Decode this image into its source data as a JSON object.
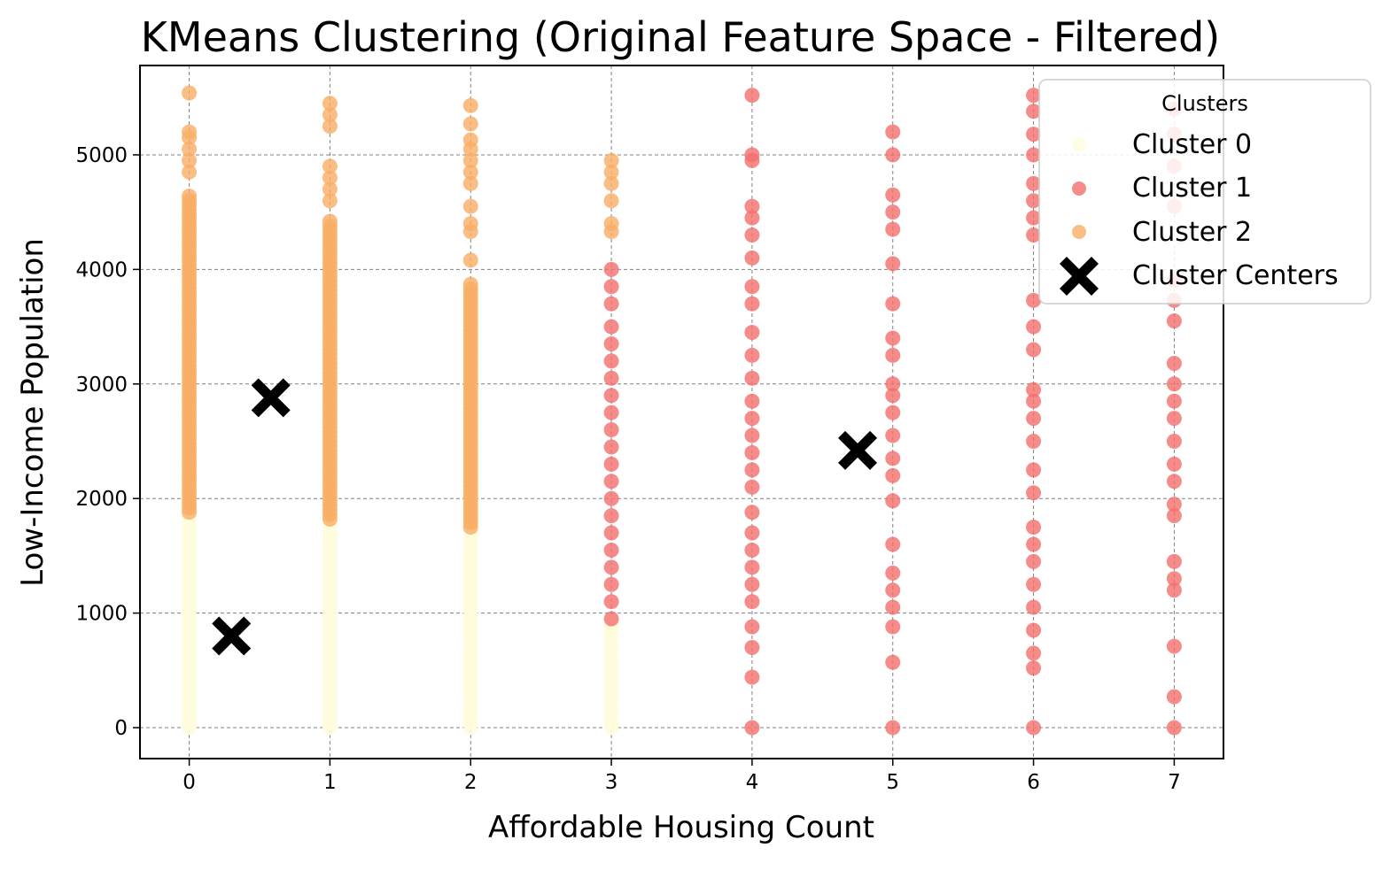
{
  "chart_data": {
    "type": "scatter",
    "title": "KMeans Clustering (Original Feature Space - Filtered)",
    "xlabel": "Affordable Housing Count",
    "ylabel": "Low-Income Population",
    "xlim": [
      -0.35,
      7.35
    ],
    "ylim": [
      -270,
      5780
    ],
    "xticks": [
      0,
      1,
      2,
      3,
      4,
      5,
      6,
      7
    ],
    "yticks": [
      0,
      1000,
      2000,
      3000,
      4000,
      5000
    ],
    "grid": true,
    "legend": {
      "title": "Clusters",
      "placement": "top-right",
      "entries": [
        "Cluster 0",
        "Cluster 1",
        "Cluster 2",
        "Cluster Centers"
      ]
    },
    "colors": {
      "Cluster 0": "#fffbdd",
      "Cluster 1": "#f46f6d",
      "Cluster 2": "#f9ae65",
      "Cluster Centers": "#000000"
    },
    "series": [
      {
        "name": "Cluster 0",
        "columns": [
          {
            "x": 0,
            "y_min": 0,
            "y_max": 1880
          },
          {
            "x": 1,
            "y_min": 0,
            "y_max": 1820
          },
          {
            "x": 2,
            "y_min": 0,
            "y_max": 1750
          },
          {
            "x": 3,
            "y_min": 0,
            "y_max": 950
          }
        ]
      },
      {
        "name": "Cluster 1",
        "points": [
          {
            "x": 3,
            "y": 950
          },
          {
            "x": 3,
            "y": 1100
          },
          {
            "x": 3,
            "y": 1250
          },
          {
            "x": 3,
            "y": 1400
          },
          {
            "x": 3,
            "y": 1550
          },
          {
            "x": 3,
            "y": 1700
          },
          {
            "x": 3,
            "y": 1850
          },
          {
            "x": 3,
            "y": 2000
          },
          {
            "x": 3,
            "y": 2150
          },
          {
            "x": 3,
            "y": 2300
          },
          {
            "x": 3,
            "y": 2450
          },
          {
            "x": 3,
            "y": 2600
          },
          {
            "x": 3,
            "y": 2750
          },
          {
            "x": 3,
            "y": 2900
          },
          {
            "x": 3,
            "y": 3050
          },
          {
            "x": 3,
            "y": 3200
          },
          {
            "x": 3,
            "y": 3350
          },
          {
            "x": 3,
            "y": 3500
          },
          {
            "x": 3,
            "y": 3700
          },
          {
            "x": 3,
            "y": 3850
          },
          {
            "x": 3,
            "y": 4000
          },
          {
            "x": 4,
            "y": 0
          },
          {
            "x": 4,
            "y": 440
          },
          {
            "x": 4,
            "y": 700
          },
          {
            "x": 4,
            "y": 880
          },
          {
            "x": 4,
            "y": 1100
          },
          {
            "x": 4,
            "y": 1250
          },
          {
            "x": 4,
            "y": 1400
          },
          {
            "x": 4,
            "y": 1550
          },
          {
            "x": 4,
            "y": 1700
          },
          {
            "x": 4,
            "y": 1880
          },
          {
            "x": 4,
            "y": 2100
          },
          {
            "x": 4,
            "y": 2250
          },
          {
            "x": 4,
            "y": 2400
          },
          {
            "x": 4,
            "y": 2550
          },
          {
            "x": 4,
            "y": 2700
          },
          {
            "x": 4,
            "y": 2850
          },
          {
            "x": 4,
            "y": 3050
          },
          {
            "x": 4,
            "y": 3250
          },
          {
            "x": 4,
            "y": 3450
          },
          {
            "x": 4,
            "y": 3700
          },
          {
            "x": 4,
            "y": 3850
          },
          {
            "x": 4,
            "y": 4100
          },
          {
            "x": 4,
            "y": 4300
          },
          {
            "x": 4,
            "y": 4450
          },
          {
            "x": 4,
            "y": 4550
          },
          {
            "x": 4,
            "y": 4950
          },
          {
            "x": 4,
            "y": 5000
          },
          {
            "x": 4,
            "y": 5520
          },
          {
            "x": 5,
            "y": 0
          },
          {
            "x": 5,
            "y": 570
          },
          {
            "x": 5,
            "y": 880
          },
          {
            "x": 5,
            "y": 1050
          },
          {
            "x": 5,
            "y": 1200
          },
          {
            "x": 5,
            "y": 1350
          },
          {
            "x": 5,
            "y": 1600
          },
          {
            "x": 5,
            "y": 1980
          },
          {
            "x": 5,
            "y": 2200
          },
          {
            "x": 5,
            "y": 2350
          },
          {
            "x": 5,
            "y": 2550
          },
          {
            "x": 5,
            "y": 2750
          },
          {
            "x": 5,
            "y": 2900
          },
          {
            "x": 5,
            "y": 3000
          },
          {
            "x": 5,
            "y": 3250
          },
          {
            "x": 5,
            "y": 3400
          },
          {
            "x": 5,
            "y": 3700
          },
          {
            "x": 5,
            "y": 4050
          },
          {
            "x": 5,
            "y": 4350
          },
          {
            "x": 5,
            "y": 4500
          },
          {
            "x": 5,
            "y": 4650
          },
          {
            "x": 5,
            "y": 5000
          },
          {
            "x": 5,
            "y": 5200
          },
          {
            "x": 6,
            "y": 0
          },
          {
            "x": 6,
            "y": 520
          },
          {
            "x": 6,
            "y": 650
          },
          {
            "x": 6,
            "y": 850
          },
          {
            "x": 6,
            "y": 1050
          },
          {
            "x": 6,
            "y": 1250
          },
          {
            "x": 6,
            "y": 1450
          },
          {
            "x": 6,
            "y": 1600
          },
          {
            "x": 6,
            "y": 1750
          },
          {
            "x": 6,
            "y": 2050
          },
          {
            "x": 6,
            "y": 2250
          },
          {
            "x": 6,
            "y": 2500
          },
          {
            "x": 6,
            "y": 2700
          },
          {
            "x": 6,
            "y": 2850
          },
          {
            "x": 6,
            "y": 2950
          },
          {
            "x": 6,
            "y": 3300
          },
          {
            "x": 6,
            "y": 3500
          },
          {
            "x": 6,
            "y": 3730
          },
          {
            "x": 6,
            "y": 4300
          },
          {
            "x": 6,
            "y": 4450
          },
          {
            "x": 6,
            "y": 4600
          },
          {
            "x": 6,
            "y": 4750
          },
          {
            "x": 6,
            "y": 5000
          },
          {
            "x": 6,
            "y": 5180
          },
          {
            "x": 6,
            "y": 5380
          },
          {
            "x": 6,
            "y": 5520
          },
          {
            "x": 7,
            "y": 0
          },
          {
            "x": 7,
            "y": 270
          },
          {
            "x": 7,
            "y": 710
          },
          {
            "x": 7,
            "y": 1200
          },
          {
            "x": 7,
            "y": 1300
          },
          {
            "x": 7,
            "y": 1450
          },
          {
            "x": 7,
            "y": 1850
          },
          {
            "x": 7,
            "y": 1950
          },
          {
            "x": 7,
            "y": 2150
          },
          {
            "x": 7,
            "y": 2300
          },
          {
            "x": 7,
            "y": 2500
          },
          {
            "x": 7,
            "y": 2700
          },
          {
            "x": 7,
            "y": 2850
          },
          {
            "x": 7,
            "y": 3000
          },
          {
            "x": 7,
            "y": 3180
          },
          {
            "x": 7,
            "y": 3550
          },
          {
            "x": 7,
            "y": 3730
          },
          {
            "x": 7,
            "y": 3900
          },
          {
            "x": 7,
            "y": 4550
          },
          {
            "x": 7,
            "y": 4900
          },
          {
            "x": 7,
            "y": 5180
          },
          {
            "x": 7,
            "y": 5400
          }
        ]
      },
      {
        "name": "Cluster 2",
        "columns": [
          {
            "x": 0,
            "y_min": 1880,
            "y_max": 4650
          },
          {
            "x": 1,
            "y_min": 1820,
            "y_max": 4430
          },
          {
            "x": 2,
            "y_min": 1750,
            "y_max": 3900
          }
        ],
        "points": [
          {
            "x": 0,
            "y": 4850
          },
          {
            "x": 0,
            "y": 4950
          },
          {
            "x": 0,
            "y": 5050
          },
          {
            "x": 0,
            "y": 5150
          },
          {
            "x": 0,
            "y": 5200
          },
          {
            "x": 0,
            "y": 5540
          },
          {
            "x": 1,
            "y": 4600
          },
          {
            "x": 1,
            "y": 4700
          },
          {
            "x": 1,
            "y": 4800
          },
          {
            "x": 1,
            "y": 4900
          },
          {
            "x": 1,
            "y": 5250
          },
          {
            "x": 1,
            "y": 5350
          },
          {
            "x": 1,
            "y": 5450
          },
          {
            "x": 2,
            "y": 4080
          },
          {
            "x": 2,
            "y": 4330
          },
          {
            "x": 2,
            "y": 4400
          },
          {
            "x": 2,
            "y": 4550
          },
          {
            "x": 2,
            "y": 4750
          },
          {
            "x": 2,
            "y": 4850
          },
          {
            "x": 2,
            "y": 4950
          },
          {
            "x": 2,
            "y": 5050
          },
          {
            "x": 2,
            "y": 5130
          },
          {
            "x": 2,
            "y": 5270
          },
          {
            "x": 2,
            "y": 5430
          },
          {
            "x": 3,
            "y": 4330
          },
          {
            "x": 3,
            "y": 4400
          },
          {
            "x": 3,
            "y": 4600
          },
          {
            "x": 3,
            "y": 4750
          },
          {
            "x": 3,
            "y": 4850
          },
          {
            "x": 3,
            "y": 4950
          }
        ]
      },
      {
        "name": "Cluster Centers",
        "points": [
          {
            "x": 0.3,
            "y": 800
          },
          {
            "x": 0.58,
            "y": 2880
          },
          {
            "x": 4.75,
            "y": 2420
          }
        ]
      }
    ]
  }
}
